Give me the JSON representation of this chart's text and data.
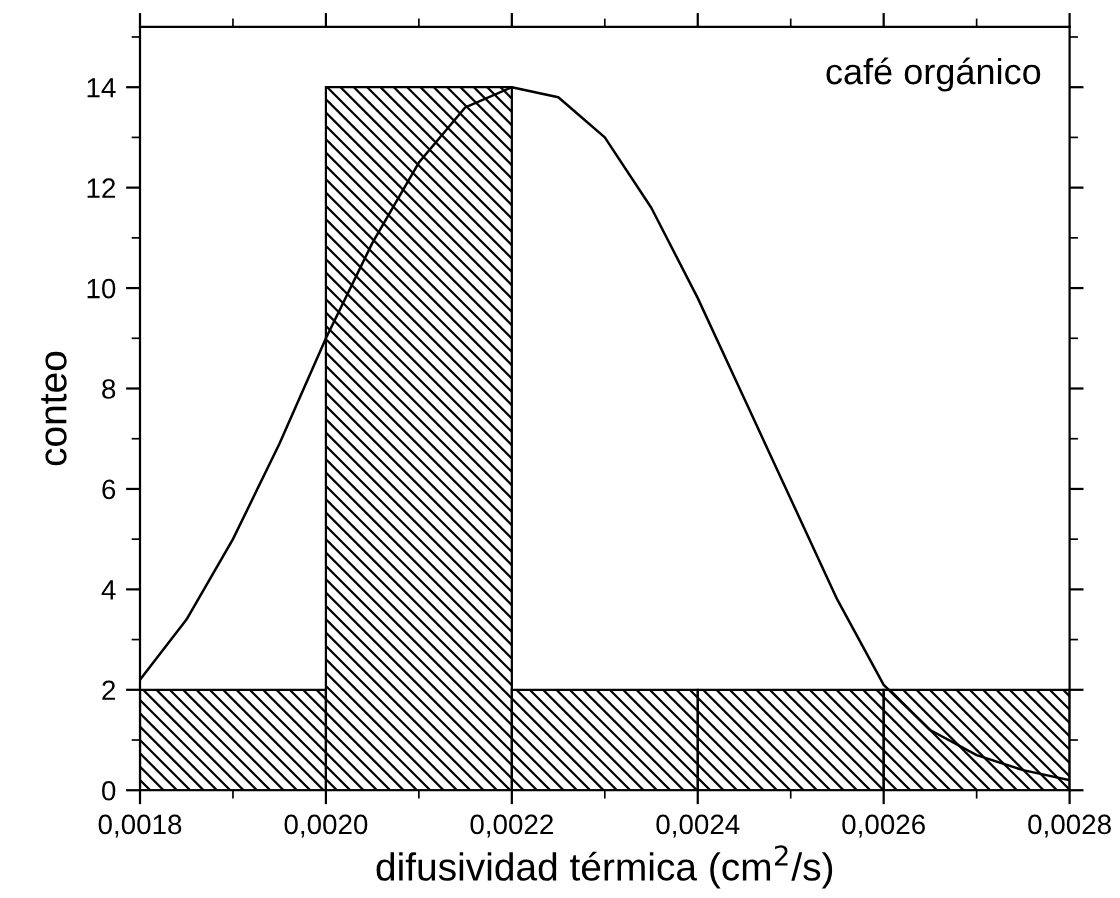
{
  "chart_data": {
    "type": "histogram",
    "xlabel": "difusividad térmica (cm$^{2}$/s)",
    "ylabel": "conteo",
    "annotations": [
      "café orgánico"
    ],
    "bins": [
      0.0018,
      0.002,
      0.0022,
      0.0024,
      0.0026,
      0.0028
    ],
    "values": [
      2,
      14,
      2,
      2,
      2
    ],
    "series": [
      {
        "type": "line",
        "color": "#000000",
        "x": [
          0.0018,
          0.00185,
          0.0019,
          0.00195,
          0.002,
          0.00205,
          0.0021,
          0.00215,
          0.0022,
          0.00225,
          0.0023,
          0.00235,
          0.0024,
          0.00245,
          0.0025,
          0.00255,
          0.0026,
          0.00265,
          0.0027,
          0.00275,
          0.0028
        ],
        "values": [
          2.2,
          3.4,
          5.0,
          6.9,
          9.0,
          10.9,
          12.5,
          13.6,
          14.0,
          13.8,
          13.0,
          11.6,
          9.8,
          7.8,
          5.8,
          3.8,
          2.1,
          1.2,
          0.7,
          0.4,
          0.2
        ]
      }
    ],
    "xlim": [
      0.0018,
      0.0028
    ],
    "ylim": [
      0,
      15.2
    ],
    "xticks": [
      {
        "value": 0.0018,
        "label": "0,0018"
      },
      {
        "value": 0.002,
        "label": "0,0020"
      },
      {
        "value": 0.0022,
        "label": "0,0022"
      },
      {
        "value": 0.0024,
        "label": "0,0024"
      },
      {
        "value": 0.0026,
        "label": "0,0026"
      },
      {
        "value": 0.0028,
        "label": "0,0028"
      }
    ],
    "yticks": [
      0,
      2,
      4,
      6,
      8,
      10,
      12,
      14
    ],
    "grid": false,
    "legend": false
  }
}
